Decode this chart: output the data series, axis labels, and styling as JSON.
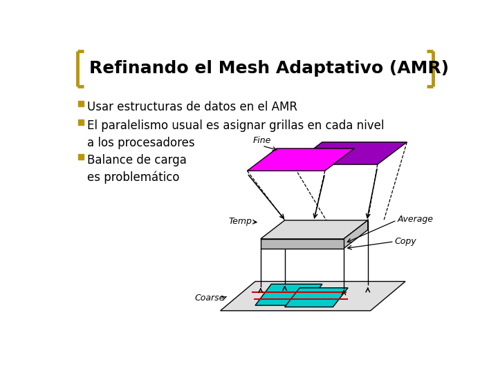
{
  "title": "Refinando el Mesh Adaptativo (AMR)",
  "title_fontsize": 18,
  "title_color": "#000000",
  "bracket_color": "#B8960C",
  "background_color": "#FFFFFF",
  "bullet_color": "#B8960C",
  "bullet_points": [
    "Usar estructuras de datos en el AMR",
    "El paralelismo usual es asignar grillas en cada nivel\na los procesadores",
    "Balance de carga\nes problemático"
  ],
  "bullet_fontsize": 12,
  "fine_color1": "#FF00FF",
  "fine_color2": "#9900BB",
  "temp_color": "#DCDCDC",
  "coarse_color": "#E0E0E0",
  "teal_color": "#00CCCC",
  "red_color": "#CC0000"
}
